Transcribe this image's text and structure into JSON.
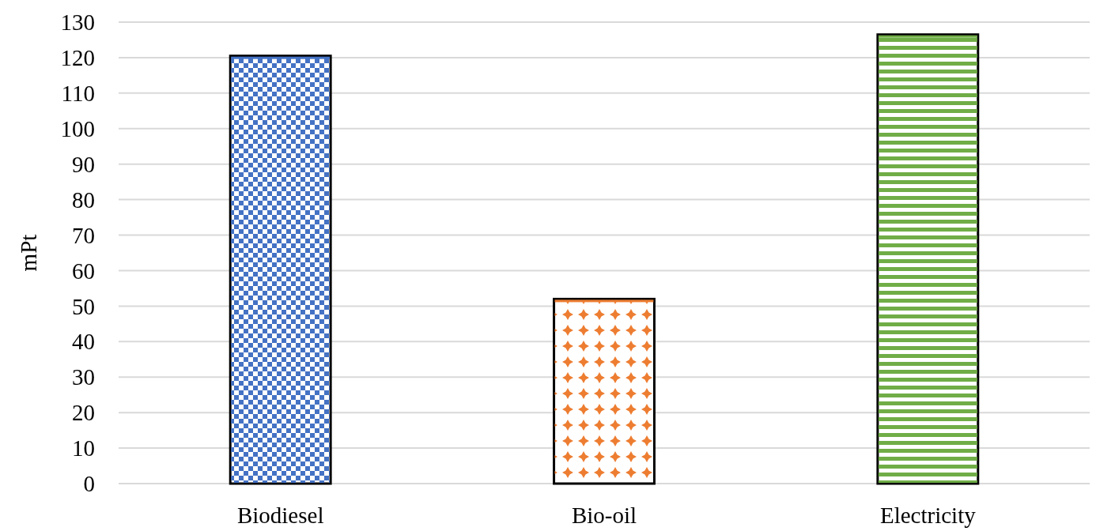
{
  "chart_data": {
    "type": "bar",
    "ylabel": "mPt",
    "categories": [
      "Biodiesel",
      "Bio-oil",
      "Electricity"
    ],
    "values": [
      120.5,
      52,
      126.5
    ],
    "colors": [
      "#4472c4",
      "#ed7d31",
      "#70ad47"
    ],
    "ylim": [
      0,
      130
    ],
    "yticks": [
      0,
      10,
      20,
      30,
      40,
      50,
      60,
      70,
      80,
      90,
      100,
      110,
      120,
      130
    ],
    "grid": "y"
  }
}
